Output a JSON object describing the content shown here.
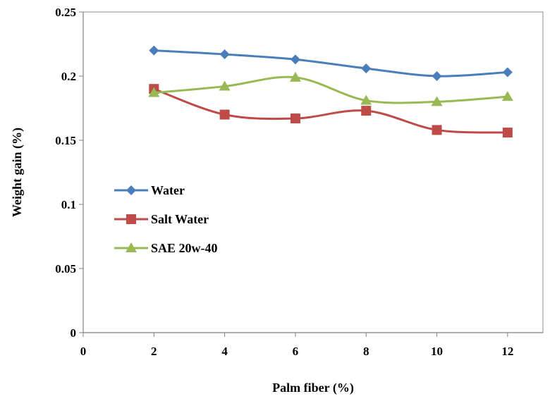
{
  "chart_data": {
    "type": "line",
    "xlabel": "Palm fiber (%)",
    "ylabel": "Weight gain (%)",
    "xlim": [
      0,
      13
    ],
    "ylim": [
      0,
      0.25
    ],
    "x_ticks": [
      "0",
      "2",
      "4",
      "6",
      "8",
      "10",
      "12"
    ],
    "y_ticks": [
      "0",
      "0.05",
      "0.1",
      "0.15",
      "0.2",
      "0.25"
    ],
    "x": [
      2,
      4,
      6,
      8,
      10,
      12
    ],
    "grid": false,
    "legend_position": "left-center",
    "series": [
      {
        "name": "Water",
        "marker": "diamond",
        "color": "#4A7EBB",
        "values": [
          0.22,
          0.217,
          0.213,
          0.206,
          0.2,
          0.203
        ]
      },
      {
        "name": "Salt Water",
        "marker": "square",
        "color": "#BE4B48",
        "values": [
          0.19,
          0.17,
          0.167,
          0.173,
          0.158,
          0.156
        ]
      },
      {
        "name": "SAE 20w-40",
        "marker": "triangle",
        "color": "#98B954",
        "values": [
          0.187,
          0.192,
          0.199,
          0.181,
          0.18,
          0.184
        ]
      }
    ]
  }
}
